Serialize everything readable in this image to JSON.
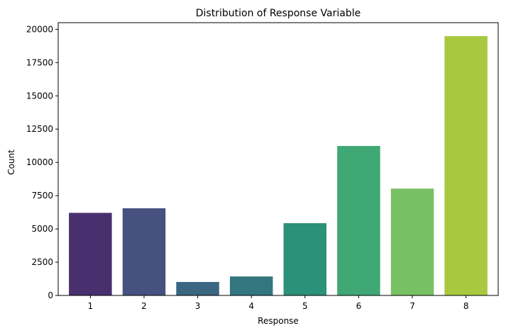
{
  "chart_data": {
    "type": "bar",
    "title": "Distribution of Response Variable",
    "xlabel": "Response",
    "ylabel": "Count",
    "categories": [
      "1",
      "2",
      "3",
      "4",
      "5",
      "6",
      "7",
      "8"
    ],
    "values": [
      6207,
      6552,
      1013,
      1428,
      5432,
      11233,
      8027,
      19489
    ],
    "colors": [
      "#482f6e",
      "#46517f",
      "#3b6681",
      "#33767f",
      "#2b9178",
      "#40a874",
      "#78c064",
      "#a8c93f"
    ],
    "ylim": [
      0,
      20500
    ],
    "yticks": [
      0,
      2500,
      5000,
      7500,
      10000,
      12500,
      15000,
      17500,
      20000
    ],
    "grid": false,
    "legend": "none"
  }
}
